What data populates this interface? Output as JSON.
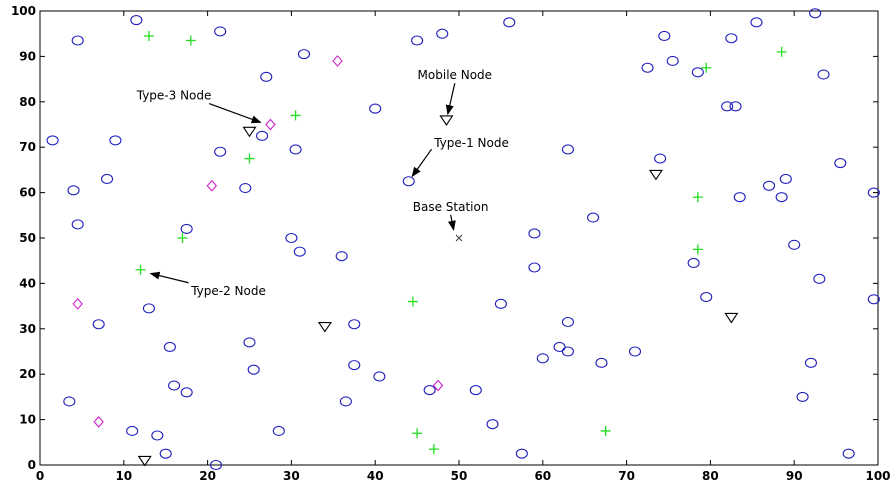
{
  "chart_data": {
    "type": "scatter",
    "title": "",
    "xlabel": "",
    "ylabel": "",
    "xlim": [
      0,
      100
    ],
    "ylim": [
      0,
      100
    ],
    "x_ticks": [
      0,
      10,
      20,
      30,
      40,
      50,
      60,
      70,
      80,
      90,
      100
    ],
    "y_ticks": [
      0,
      10,
      20,
      30,
      40,
      50,
      60,
      70,
      80,
      90,
      100
    ],
    "grid": false,
    "series": [
      {
        "marker": "circle",
        "color": "#1f1fbf",
        "points": [
          [
            1.5,
            71.5
          ],
          [
            4,
            60.5
          ],
          [
            4.5,
            93.5
          ],
          [
            4.5,
            53
          ],
          [
            8,
            63
          ],
          [
            9,
            71.5
          ],
          [
            7,
            31
          ],
          [
            3.5,
            14
          ],
          [
            11.5,
            98
          ],
          [
            11,
            7.5
          ],
          [
            14,
            6.5
          ],
          [
            13,
            34.5
          ],
          [
            15,
            2.5
          ],
          [
            15.5,
            26
          ],
          [
            16,
            17.5
          ],
          [
            17.5,
            16
          ],
          [
            17.5,
            52
          ],
          [
            21.5,
            69
          ],
          [
            21.5,
            95.5
          ],
          [
            21,
            0
          ],
          [
            24.5,
            61
          ],
          [
            25,
            27
          ],
          [
            25.5,
            21
          ],
          [
            26.5,
            72.5
          ],
          [
            27,
            85.5
          ],
          [
            28.5,
            7.5
          ],
          [
            30,
            50
          ],
          [
            30.5,
            69.5
          ],
          [
            31,
            47
          ],
          [
            31.5,
            90.5
          ],
          [
            36,
            46
          ],
          [
            36.5,
            14
          ],
          [
            37.5,
            31
          ],
          [
            37.5,
            22
          ],
          [
            40,
            78.5
          ],
          [
            40.5,
            19.5
          ],
          [
            44,
            62.5
          ],
          [
            45,
            93.5
          ],
          [
            46.5,
            16.5
          ],
          [
            48,
            95
          ],
          [
            52,
            16.5
          ],
          [
            54,
            9
          ],
          [
            55,
            35.5
          ],
          [
            56,
            97.5
          ],
          [
            57.5,
            2.5
          ],
          [
            59,
            43.5
          ],
          [
            59,
            51
          ],
          [
            60,
            23.5
          ],
          [
            62,
            26
          ],
          [
            63,
            69.5
          ],
          [
            63,
            31.5
          ],
          [
            63,
            25
          ],
          [
            66,
            54.5
          ],
          [
            67,
            22.5
          ],
          [
            71,
            25
          ],
          [
            72.5,
            87.5
          ],
          [
            74,
            67.5
          ],
          [
            74.5,
            94.5
          ],
          [
            75.5,
            89
          ],
          [
            78,
            44.5
          ],
          [
            78.5,
            86.5
          ],
          [
            79.5,
            37
          ],
          [
            82,
            79
          ],
          [
            82.5,
            94
          ],
          [
            83,
            79
          ],
          [
            83.5,
            59
          ],
          [
            85.5,
            97.5
          ],
          [
            87,
            61.5
          ],
          [
            88.5,
            59
          ],
          [
            89,
            63
          ],
          [
            90,
            48.5
          ],
          [
            91,
            15
          ],
          [
            92,
            22.5
          ],
          [
            92.5,
            99.5
          ],
          [
            93,
            41
          ],
          [
            93.5,
            86
          ],
          [
            95.5,
            66.5
          ],
          [
            96.5,
            2.5
          ],
          [
            99.5,
            36.5
          ],
          [
            99.5,
            60
          ]
        ]
      },
      {
        "marker": "plus",
        "color": "#22dd22",
        "points": [
          [
            13,
            94.5
          ],
          [
            18,
            93.5
          ],
          [
            12,
            43
          ],
          [
            17,
            50
          ],
          [
            25,
            67.5
          ],
          [
            30.5,
            77
          ],
          [
            44.5,
            36
          ],
          [
            45,
            7
          ],
          [
            47,
            3.5
          ],
          [
            67.5,
            7.5
          ],
          [
            78.5,
            59
          ],
          [
            78.5,
            47.5
          ],
          [
            79.5,
            87.5
          ],
          [
            88.5,
            91
          ]
        ]
      },
      {
        "marker": "diamond",
        "color": "#cc22cc",
        "points": [
          [
            4.5,
            35.5
          ],
          [
            7,
            9.5
          ],
          [
            20.5,
            61.5
          ],
          [
            27.5,
            75
          ],
          [
            35.5,
            89
          ],
          [
            47.5,
            17.5
          ]
        ]
      },
      {
        "marker": "triangle-down",
        "color": "#000000",
        "points": [
          [
            12.5,
            1
          ],
          [
            25,
            73.5
          ],
          [
            34,
            30.5
          ],
          [
            48.5,
            76
          ],
          [
            73.5,
            64
          ],
          [
            82.5,
            32.5
          ]
        ]
      },
      {
        "marker": "x",
        "color": "#444444",
        "points": [
          [
            50,
            50
          ]
        ]
      }
    ],
    "annotations": [
      {
        "text": "Type-3 Node",
        "text_x": 16,
        "text_y": 80.5,
        "point_x": 27,
        "point_y": 75
      },
      {
        "text": "Mobile Node",
        "text_x": 49.5,
        "text_y": 85,
        "point_x": 48.5,
        "point_y": 76
      },
      {
        "text": "Type-1 Node",
        "text_x": 51.5,
        "text_y": 70,
        "point_x": 44,
        "point_y": 62.5
      },
      {
        "text": "Base Station",
        "text_x": 49,
        "text_y": 56,
        "point_x": 49.5,
        "point_y": 50.5
      },
      {
        "text": "Type-2 Node",
        "text_x": 22.5,
        "text_y": 37.5,
        "point_x": 12.5,
        "point_y": 42.5
      }
    ]
  }
}
